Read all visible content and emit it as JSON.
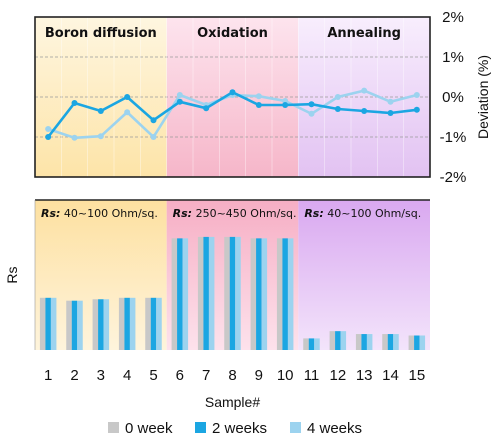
{
  "chart_data": [
    {
      "type": "line",
      "ylabel": "Deviation (%)",
      "ylim": [
        -2,
        2
      ],
      "yticks": [
        "2%",
        "1%",
        "0%",
        "-1%",
        "-2%"
      ],
      "x": [
        1,
        2,
        3,
        4,
        5,
        6,
        7,
        8,
        9,
        10,
        11,
        12,
        13,
        14,
        15
      ],
      "phases": [
        {
          "name": "Boron diffusion",
          "samples": [
            1,
            5
          ],
          "color": "#fde9b8"
        },
        {
          "name": "Oxidation",
          "samples": [
            6,
            10
          ],
          "color": "#f9c8d8"
        },
        {
          "name": "Annealing",
          "samples": [
            11,
            15
          ],
          "color": "#ead0f4"
        }
      ],
      "series": [
        {
          "name": "2 weeks",
          "color": "#1ba6e2",
          "values": [
            -1.0,
            -0.15,
            -0.35,
            0.0,
            -0.58,
            -0.12,
            -0.28,
            0.12,
            -0.2,
            -0.2,
            -0.18,
            -0.3,
            -0.35,
            -0.4,
            -0.32
          ]
        },
        {
          "name": "4 weeks",
          "color": "#9cd3ef",
          "values": [
            -0.8,
            -1.02,
            -0.98,
            -0.38,
            -1.0,
            0.05,
            -0.2,
            0.05,
            0.02,
            -0.1,
            -0.42,
            0.0,
            0.16,
            -0.12,
            0.05
          ]
        }
      ]
    },
    {
      "type": "bar",
      "ylabel": "Rs",
      "xlabel": "Sample#",
      "categories": [
        "1",
        "2",
        "3",
        "4",
        "5",
        "6",
        "7",
        "8",
        "9",
        "10",
        "11",
        "12",
        "13",
        "14",
        "15"
      ],
      "annotations": [
        {
          "key": "Rs:",
          "text": " 40~100 Ohm/sq."
        },
        {
          "key": "Rs:",
          "text": " 250~450 Ohm/sq."
        },
        {
          "key": "Rs:",
          "text": " 40~100 Ohm/sq."
        }
      ],
      "series": [
        {
          "name": "0 week",
          "color": "#c8c8c8",
          "values": [
            0.36,
            0.34,
            0.35,
            0.36,
            0.36,
            0.77,
            0.78,
            0.78,
            0.77,
            0.77,
            0.08,
            0.13,
            0.11,
            0.11,
            0.1
          ]
        },
        {
          "name": "2 weeks",
          "color": "#1ba6e2",
          "values": [
            0.36,
            0.34,
            0.35,
            0.36,
            0.36,
            0.77,
            0.78,
            0.78,
            0.77,
            0.77,
            0.08,
            0.13,
            0.11,
            0.11,
            0.1
          ]
        },
        {
          "name": "4 weeks",
          "color": "#9cd3ef",
          "values": [
            0.36,
            0.34,
            0.35,
            0.36,
            0.36,
            0.77,
            0.78,
            0.78,
            0.77,
            0.77,
            0.08,
            0.13,
            0.11,
            0.11,
            0.1
          ]
        }
      ]
    }
  ]
}
